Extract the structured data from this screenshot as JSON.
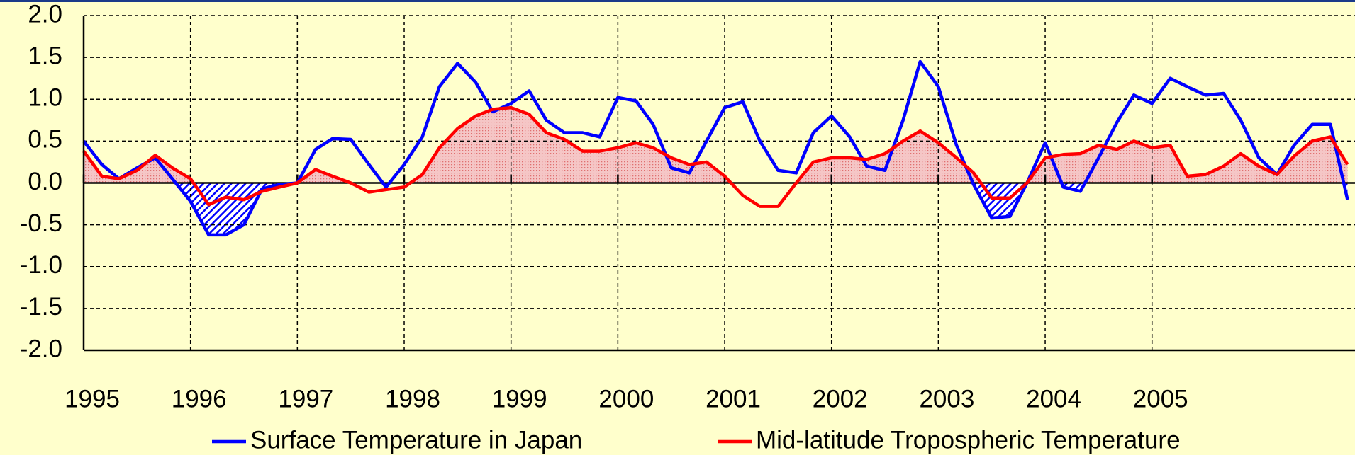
{
  "chart_data": {
    "type": "line",
    "x": [
      1995,
      1995.17,
      1995.33,
      1995.5,
      1995.67,
      1995.83,
      1996,
      1996.17,
      1996.33,
      1996.5,
      1996.67,
      1996.83,
      1997,
      1997.17,
      1997.33,
      1997.5,
      1997.67,
      1997.83,
      1998,
      1998.17,
      1998.33,
      1998.5,
      1998.67,
      1998.83,
      1999,
      1999.17,
      1999.33,
      1999.5,
      1999.67,
      1999.83,
      2000,
      2000.17,
      2000.33,
      2000.5,
      2000.67,
      2000.83,
      2001,
      2001.17,
      2001.33,
      2001.5,
      2001.67,
      2001.83,
      2002,
      2002.17,
      2002.33,
      2002.5,
      2002.67,
      2002.83,
      2003,
      2003.17,
      2003.33,
      2003.5,
      2003.67,
      2003.83,
      2004,
      2004.17,
      2004.33,
      2004.5,
      2004.67,
      2004.83,
      2005,
      2005.17,
      2005.33,
      2005.5,
      2005.67,
      2005.83,
      2006,
      2006.17,
      2006.33,
      2006.5,
      2006.67,
      2006.83
    ],
    "series": [
      {
        "name": "Surface Temperature in Japan",
        "color": "#0000ff",
        "values": [
          0.5,
          0.22,
          0.05,
          0.18,
          0.3,
          0.05,
          -0.22,
          -0.62,
          -0.62,
          -0.5,
          -0.07,
          -0.02,
          0.0,
          0.4,
          0.53,
          0.52,
          0.22,
          -0.05,
          0.22,
          0.55,
          1.15,
          1.43,
          1.2,
          0.85,
          0.95,
          1.1,
          0.75,
          0.6,
          0.6,
          0.55,
          1.02,
          0.98,
          0.7,
          0.18,
          0.12,
          0.5,
          0.9,
          0.97,
          0.5,
          0.15,
          0.12,
          0.6,
          0.8,
          0.55,
          0.2,
          0.15,
          0.75,
          1.45,
          1.15,
          0.45,
          -0.02,
          -0.42,
          -0.4,
          0.0,
          0.48,
          -0.05,
          -0.1,
          0.3,
          0.72,
          1.05,
          0.95,
          1.25,
          1.15,
          1.05,
          1.07,
          0.75,
          0.3,
          0.1,
          0.45,
          0.7,
          0.7,
          -0.2
        ]
      },
      {
        "name": "Mid-latitude Tropospheric Temperature",
        "color": "#ff0000",
        "values": [
          0.38,
          0.08,
          0.05,
          0.15,
          0.33,
          0.18,
          0.05,
          -0.26,
          -0.17,
          -0.2,
          -0.1,
          -0.05,
          0.0,
          0.16,
          0.08,
          0.0,
          -0.11,
          -0.08,
          -0.05,
          0.1,
          0.42,
          0.65,
          0.8,
          0.88,
          0.9,
          0.82,
          0.6,
          0.52,
          0.38,
          0.38,
          0.42,
          0.48,
          0.42,
          0.3,
          0.22,
          0.25,
          0.08,
          -0.15,
          -0.28,
          -0.28,
          0.0,
          0.25,
          0.3,
          0.3,
          0.28,
          0.35,
          0.5,
          0.62,
          0.48,
          0.3,
          0.12,
          -0.18,
          -0.18,
          0.0,
          0.3,
          0.34,
          0.35,
          0.45,
          0.4,
          0.5,
          0.42,
          0.45,
          0.08,
          0.1,
          0.2,
          0.35,
          0.2,
          0.1,
          0.32,
          0.5,
          0.55,
          0.22
        ]
      }
    ],
    "xlim": [
      1995,
      2006.9
    ],
    "xticks": [
      1995,
      1996,
      1997,
      1998,
      1999,
      2000,
      2001,
      2002,
      2003,
      2004,
      2005
    ],
    "ylim": [
      -2,
      2
    ],
    "yticks": [
      {
        "value": -2,
        "label": "-2.0"
      },
      -1.5,
      {
        "value": -1,
        "label": "-1.0"
      },
      -0.5,
      {
        "value": 0,
        "label": "0.0"
      },
      0.5,
      {
        "value": 1,
        "label": "1.0"
      },
      1.5,
      {
        "value": 2,
        "label": "2.0"
      }
    ],
    "grid": true
  }
}
